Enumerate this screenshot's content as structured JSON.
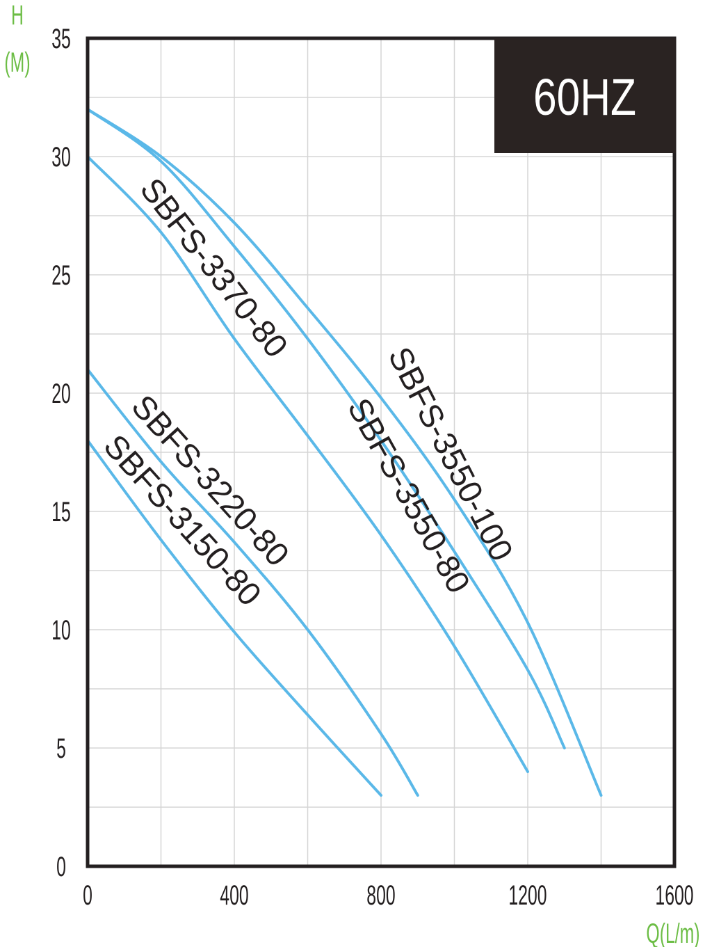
{
  "chart_data": {
    "type": "line",
    "ylabel_line1": "H",
    "ylabel_line2": "(M)",
    "xlabel": "Q(L/m)",
    "badge": "60HZ",
    "xlim": [
      0,
      1600
    ],
    "ylim": [
      0,
      35
    ],
    "x_ticks": [
      0,
      400,
      800,
      1200,
      1600
    ],
    "y_ticks": [
      0,
      5,
      10,
      15,
      20,
      25,
      30,
      35
    ],
    "grid": true,
    "colors": {
      "curve": "#5ab8e8",
      "badge": "#2a2322",
      "axis_label": "#6cbd45",
      "frame": "#231f20"
    },
    "series": [
      {
        "name": "SBFS-3150-80",
        "x": [
          0,
          200,
          400,
          600,
          800
        ],
        "y": [
          18,
          13.8,
          9.9,
          6.4,
          3
        ]
      },
      {
        "name": "SBFS-3220-80",
        "x": [
          0,
          200,
          400,
          600,
          800,
          900
        ],
        "y": [
          21,
          17.1,
          13.7,
          10,
          5.6,
          3
        ]
      },
      {
        "name": "SBFS-3370-80",
        "x": [
          0,
          200,
          400,
          600,
          800,
          1000,
          1200
        ],
        "y": [
          30,
          26.8,
          22.3,
          18.2,
          14,
          9.3,
          4
        ]
      },
      {
        "name": "SBFS-3550-80",
        "x": [
          0,
          200,
          400,
          600,
          800,
          1000,
          1200,
          1300
        ],
        "y": [
          32,
          29.8,
          26.2,
          22.3,
          18,
          13.3,
          8.3,
          5
        ]
      },
      {
        "name": "SBFS-3550-100",
        "x": [
          0,
          200,
          400,
          600,
          800,
          1000,
          1200,
          1400
        ],
        "y": [
          32,
          30,
          27.2,
          23.6,
          19.8,
          15.5,
          10.3,
          3
        ]
      }
    ]
  }
}
